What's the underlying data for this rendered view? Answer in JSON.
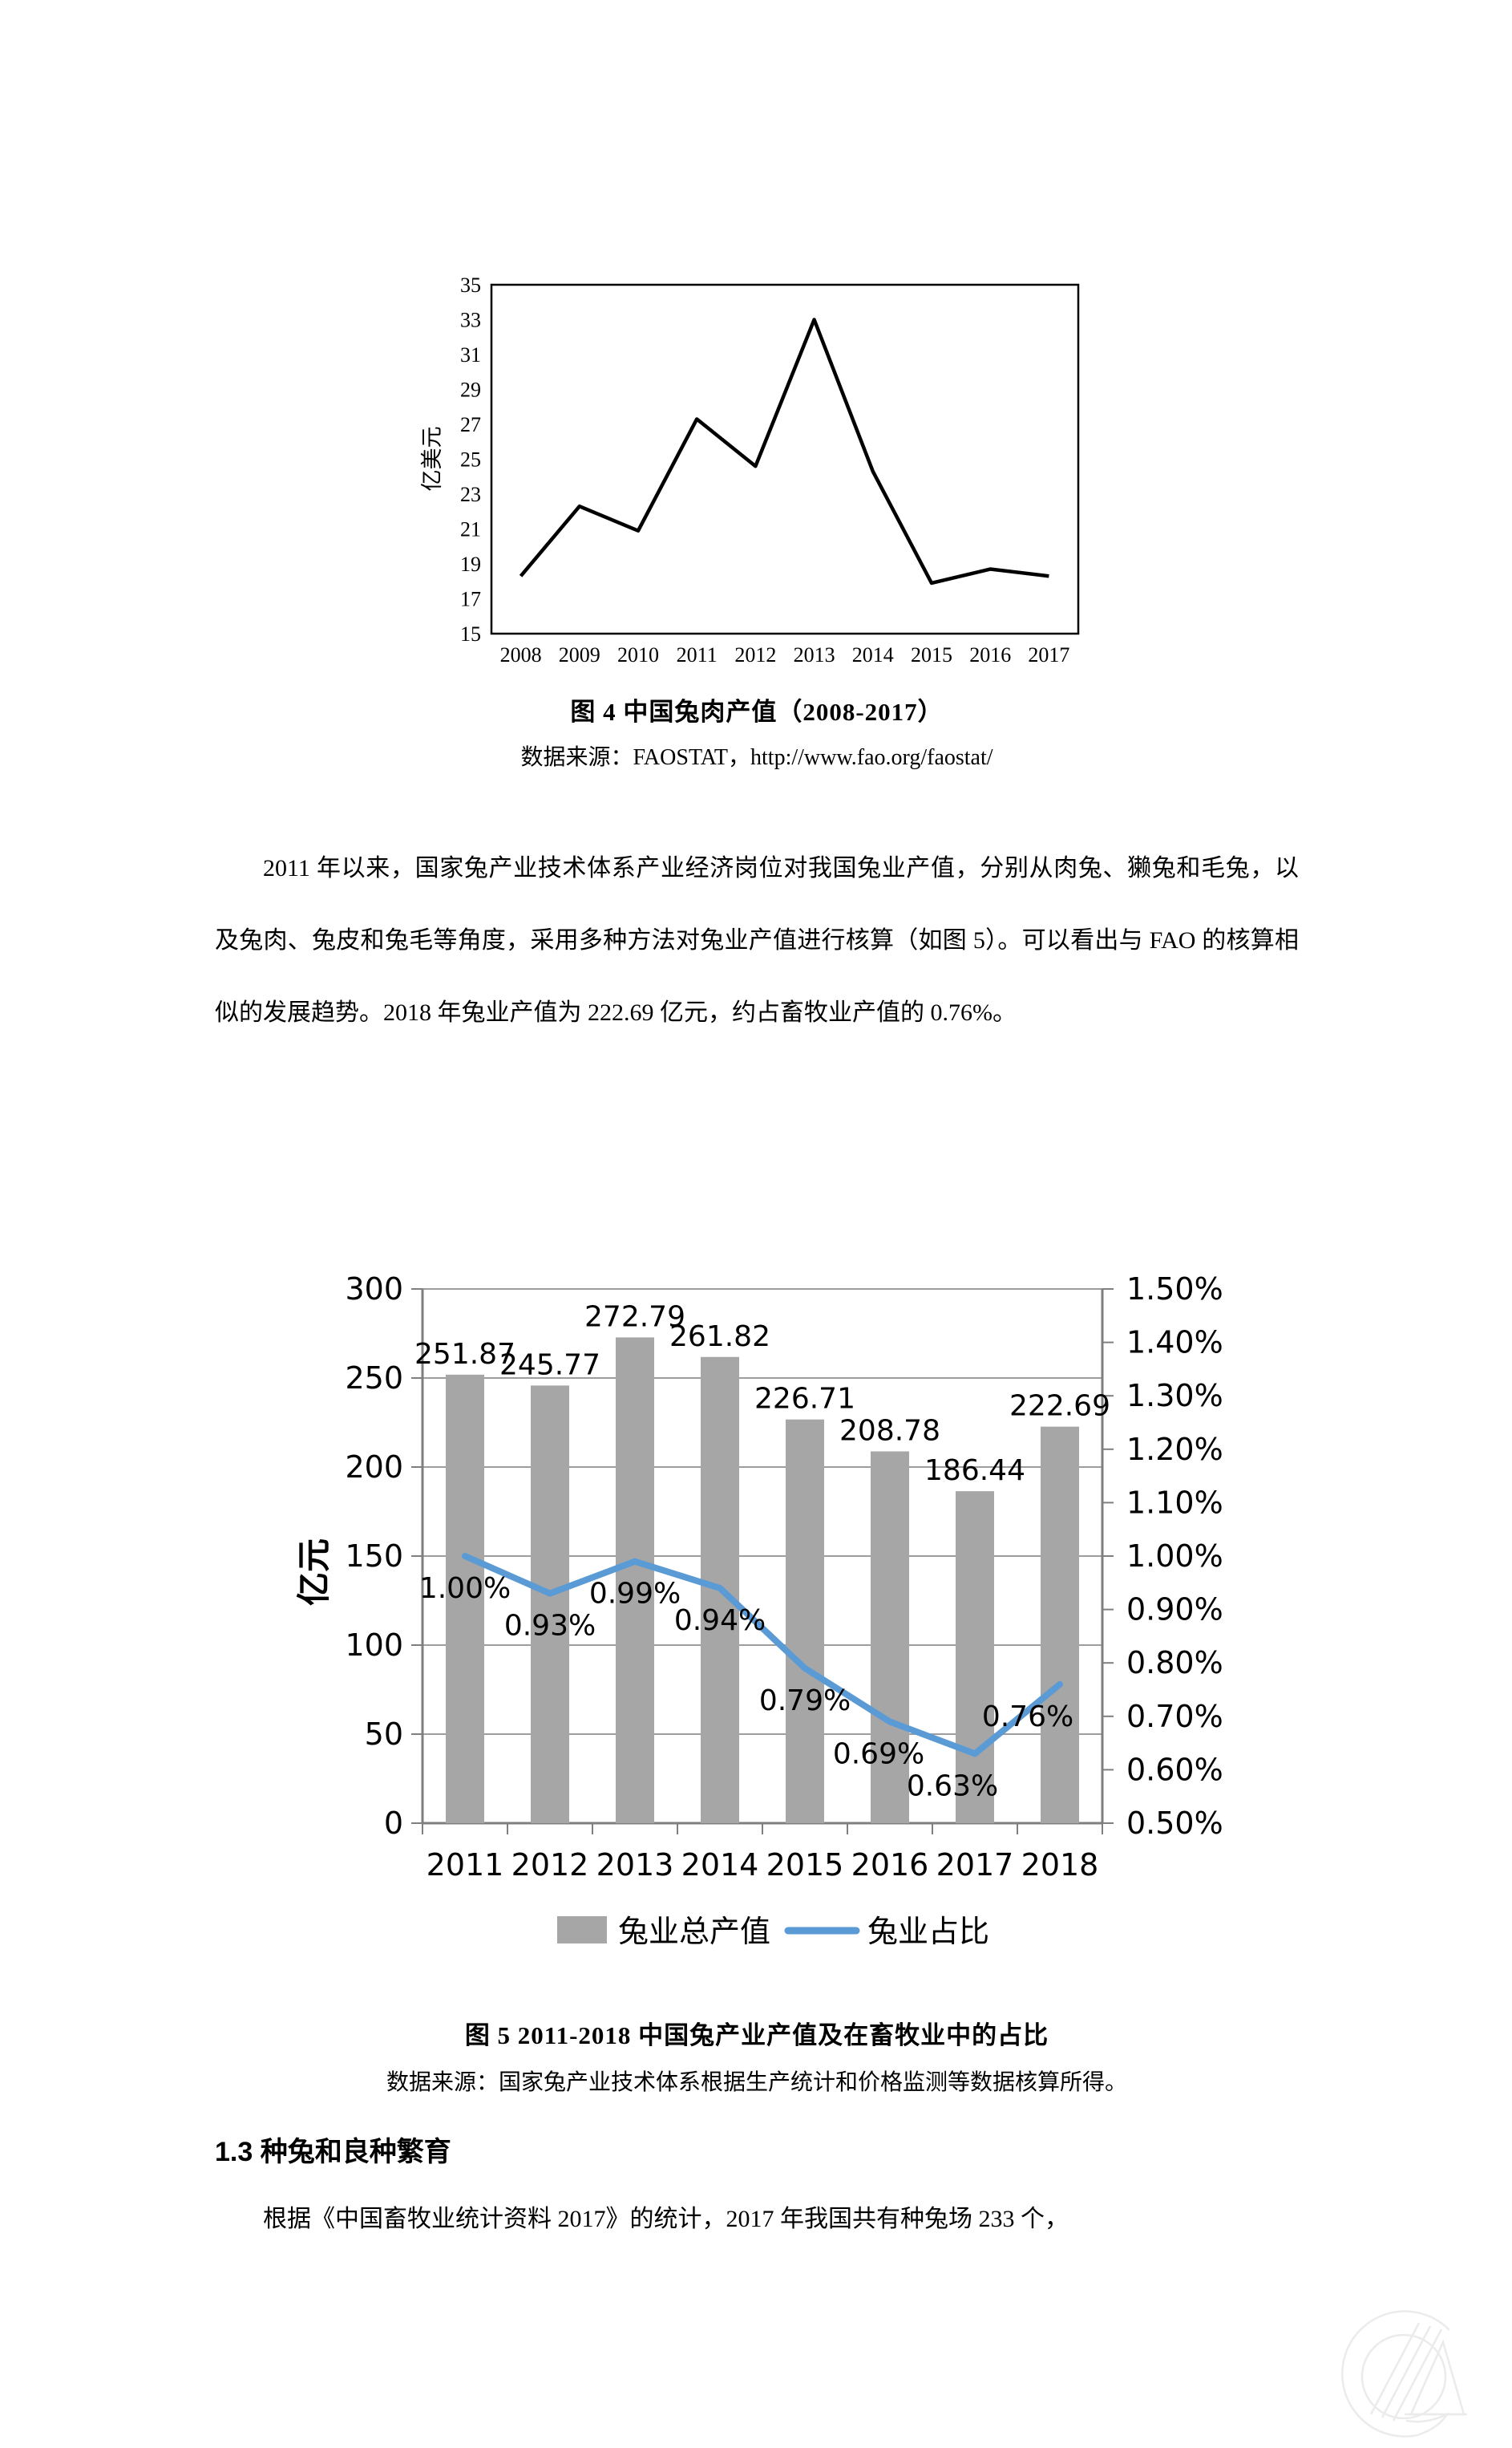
{
  "document": {
    "figure4": {
      "caption": "图 4  中国兔肉产值（2008-2017）",
      "source": "数据来源：FAOSTAT，http://www.fao.org/faostat/"
    },
    "paragraph1": "2011 年以来，国家兔产业技术体系产业经济岗位对我国兔业产值，分别从肉兔、獭兔和毛兔，以及兔肉、兔皮和兔毛等角度，采用多种方法对兔业产值进行核算（如图 5）。可以看出与 FAO 的核算相似的发展趋势。2018 年兔业产值为 222.69 亿元，约占畜牧业产值的 0.76%。",
    "figure5": {
      "caption": "图 5  2011-2018 中国兔产业产值及在畜牧业中的占比",
      "source": "数据来源：国家兔产业技术体系根据生产统计和价格监测等数据核算所得。"
    },
    "section_heading": "1.3 种兔和良种繁育",
    "paragraph2": "根据《中国畜牧业统计资料 2017》的统计，2017 年我国共有种兔场 233 个，"
  },
  "chart_data": [
    {
      "type": "line",
      "title": "中国兔肉产值（2008-2017）",
      "x": [
        "2008",
        "2009",
        "2010",
        "2011",
        "2012",
        "2013",
        "2014",
        "2015",
        "2016",
        "2017"
      ],
      "values": [
        18.3,
        22.3,
        20.9,
        27.3,
        24.6,
        33.0,
        24.3,
        17.9,
        18.7,
        18.3
      ],
      "xlabel": "",
      "ylabel": "亿美元",
      "ylim": [
        15,
        35
      ],
      "ytick_step": 2,
      "line_color": "#000000",
      "grid": false,
      "legend_position": "none"
    },
    {
      "type": "bar",
      "subtype": "bar+line combo, dual axis",
      "title": "2011-2018 中国兔产业产值及在畜牧业中的占比",
      "categories": [
        "2011",
        "2012",
        "2013",
        "2014",
        "2015",
        "2016",
        "2017",
        "2018"
      ],
      "series": [
        {
          "name": "兔业总产值",
          "type": "bar",
          "axis": "left",
          "color": "#a6a6a6",
          "values": [
            251.87,
            245.77,
            272.79,
            261.82,
            226.71,
            208.78,
            186.44,
            222.69
          ]
        },
        {
          "name": "兔业占比",
          "type": "line",
          "axis": "right",
          "color": "#5b9bd5",
          "values_percent": [
            1.0,
            0.93,
            0.99,
            0.94,
            0.79,
            0.69,
            0.63,
            0.76
          ]
        }
      ],
      "left_axis": {
        "label": "亿元",
        "lim": [
          0,
          300
        ],
        "tick_step": 50
      },
      "right_axis": {
        "label": "",
        "lim_percent": [
          0.5,
          1.5
        ],
        "tick_step_percent": 0.1
      },
      "grid": true,
      "legend_position": "bottom"
    }
  ]
}
